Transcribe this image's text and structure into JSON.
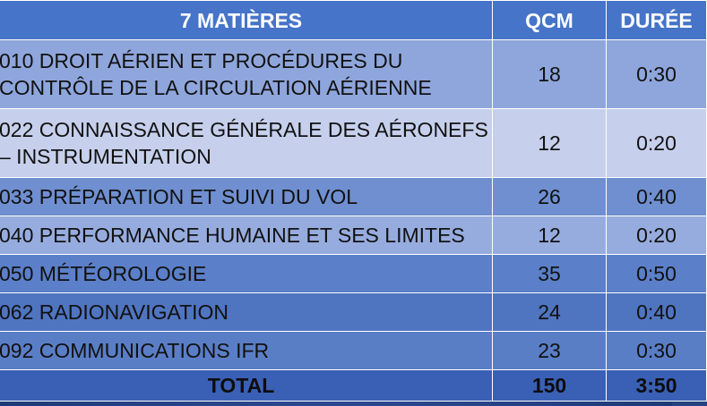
{
  "table": {
    "headers": [
      "7 MATIÈRES",
      "QCM",
      "DURÉE"
    ],
    "rows": [
      {
        "subject": "010 DROIT AÉRIEN ET PROCÉDURES DU CONTRÔLE DE LA CIRCULATION AÉRIENNE",
        "qcm": "18",
        "duration": "0:30"
      },
      {
        "subject": "022 CONNAISSANCE GÉNÉRALE DES AÉRONEFS – INSTRUMENTATION",
        "qcm": "12",
        "duration": "0:20"
      },
      {
        "subject": "033 PRÉPARATION ET SUIVI DU VOL",
        "qcm": "26",
        "duration": "0:40"
      },
      {
        "subject": "040 PERFORMANCE HUMAINE ET SES LIMITES",
        "qcm": "12",
        "duration": "0:20"
      },
      {
        "subject": "050 MÉTÉOROLOGIE",
        "qcm": "35",
        "duration": "0:50"
      },
      {
        "subject": "062 RADIONAVIGATION",
        "qcm": "24",
        "duration": "0:40"
      },
      {
        "subject": "092 COMMUNICATIONS IFR",
        "qcm": "23",
        "duration": "0:30"
      }
    ],
    "total": {
      "label": "TOTAL",
      "qcm": "150",
      "duration": "3:50"
    }
  }
}
